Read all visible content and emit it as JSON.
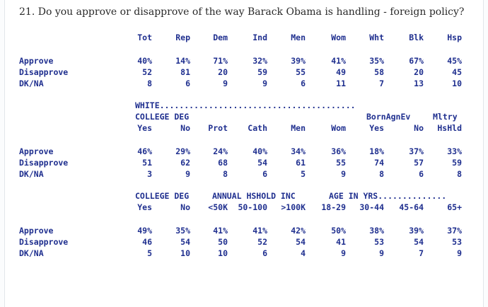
{
  "question": "21. Do you approve or disapprove of the way Barack Obama is handling - foreign policy?",
  "row_labels": [
    "Approve",
    "Disapprove",
    "DK/NA"
  ],
  "block1": {
    "headers": [
      "Tot",
      "Rep",
      "Dem",
      "Ind",
      "Men",
      "Wom",
      "Wht",
      "Blk",
      "Hsp"
    ],
    "rows": [
      [
        "40%",
        "14%",
        "71%",
        "32%",
        "39%",
        "41%",
        "35%",
        "67%",
        "45%"
      ],
      [
        "52",
        "81",
        "20",
        "59",
        "55",
        "49",
        "58",
        "20",
        "45"
      ],
      [
        "8",
        "6",
        "9",
        "9",
        "6",
        "11",
        "7",
        "13",
        "10"
      ]
    ]
  },
  "block2": {
    "group_line": "WHITE........................................",
    "group_line2_left": "COLLEGE DEG",
    "group_line2_right": "BornAgnEv",
    "group_line2_right2": "Mltry",
    "headers": [
      "Yes",
      "No",
      "Prot",
      "Cath",
      "Men",
      "Wom",
      "Yes",
      "No",
      "HsHld"
    ],
    "rows": [
      [
        "46%",
        "29%",
        "24%",
        "40%",
        "34%",
        "36%",
        "18%",
        "37%",
        "33%"
      ],
      [
        "51",
        "62",
        "68",
        "54",
        "61",
        "55",
        "74",
        "57",
        "59"
      ],
      [
        "3",
        "9",
        "8",
        "6",
        "5",
        "9",
        "8",
        "6",
        "8"
      ]
    ]
  },
  "block3": {
    "group_college": "COLLEGE DEG",
    "group_income": "ANNUAL HSHOLD INC",
    "group_age": "AGE IN YRS..............",
    "headers": [
      "Yes",
      "No",
      "<50K",
      "50-100",
      ">100K",
      "18-29",
      "30-44",
      "45-64",
      "65+"
    ],
    "rows": [
      [
        "49%",
        "35%",
        "41%",
        "41%",
        "42%",
        "50%",
        "38%",
        "39%",
        "37%"
      ],
      [
        "46",
        "54",
        "50",
        "52",
        "54",
        "41",
        "53",
        "54",
        "53"
      ],
      [
        "5",
        "10",
        "10",
        "6",
        "4",
        "9",
        "9",
        "7",
        "9"
      ]
    ]
  }
}
